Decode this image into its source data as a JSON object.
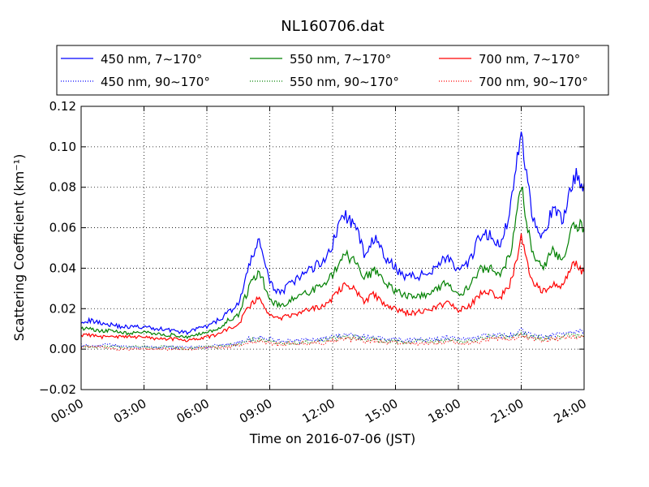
{
  "chart_data": {
    "type": "line",
    "title": "NL160706.dat",
    "xlabel": "Time on 2016-07-06 (JST)",
    "ylabel": "Scattering Coefficient (km⁻¹)",
    "xlim": [
      "00:00",
      "24:00"
    ],
    "ylim": [
      -0.02,
      0.12
    ],
    "x_ticks": [
      "00:00",
      "03:00",
      "06:00",
      "09:00",
      "12:00",
      "15:00",
      "18:00",
      "21:00",
      "24:00"
    ],
    "y_ticks": [
      "−0.02",
      "0.00",
      "0.02",
      "0.04",
      "0.06",
      "0.08",
      "0.10",
      "0.12"
    ],
    "grid": true,
    "legend_position": "top",
    "x": [
      "00:00",
      "00:30",
      "01:00",
      "01:30",
      "02:00",
      "02:30",
      "03:00",
      "03:30",
      "04:00",
      "04:30",
      "05:00",
      "05:30",
      "06:00",
      "06:30",
      "07:00",
      "07:30",
      "08:00",
      "08:30",
      "09:00",
      "09:30",
      "10:00",
      "10:30",
      "11:00",
      "11:30",
      "12:00",
      "12:30",
      "13:00",
      "13:30",
      "14:00",
      "14:30",
      "15:00",
      "15:30",
      "16:00",
      "16:30",
      "17:00",
      "17:30",
      "18:00",
      "18:30",
      "19:00",
      "19:30",
      "20:00",
      "20:30",
      "21:00",
      "21:30",
      "22:00",
      "22:30",
      "23:00",
      "23:30",
      "24:00"
    ],
    "series": [
      {
        "name": "450 nm, 7∼170°",
        "color": "#0000ff",
        "style": "solid",
        "values": [
          0.014,
          0.014,
          0.013,
          0.012,
          0.011,
          0.011,
          0.011,
          0.01,
          0.01,
          0.009,
          0.008,
          0.01,
          0.011,
          0.014,
          0.018,
          0.022,
          0.04,
          0.055,
          0.032,
          0.028,
          0.032,
          0.036,
          0.04,
          0.043,
          0.052,
          0.067,
          0.062,
          0.048,
          0.055,
          0.045,
          0.04,
          0.036,
          0.036,
          0.037,
          0.042,
          0.046,
          0.038,
          0.042,
          0.055,
          0.057,
          0.05,
          0.07,
          0.108,
          0.068,
          0.056,
          0.068,
          0.064,
          0.086,
          0.082
        ]
      },
      {
        "name": "450 nm, 90∼170°",
        "color": "#0000ff",
        "style": "dotted",
        "values": [
          0.002,
          0.002,
          0.002,
          0.002,
          0.001,
          0.001,
          0.001,
          0.001,
          0.001,
          0.001,
          0.001,
          0.001,
          0.001,
          0.002,
          0.002,
          0.003,
          0.005,
          0.006,
          0.005,
          0.004,
          0.004,
          0.004,
          0.005,
          0.005,
          0.006,
          0.007,
          0.007,
          0.006,
          0.006,
          0.005,
          0.005,
          0.004,
          0.005,
          0.005,
          0.005,
          0.006,
          0.005,
          0.005,
          0.006,
          0.007,
          0.007,
          0.007,
          0.009,
          0.007,
          0.006,
          0.007,
          0.007,
          0.008,
          0.009
        ]
      },
      {
        "name": "550 nm, 7∼170°",
        "color": "#008000",
        "style": "solid",
        "values": [
          0.01,
          0.01,
          0.009,
          0.009,
          0.008,
          0.008,
          0.008,
          0.008,
          0.007,
          0.007,
          0.006,
          0.007,
          0.008,
          0.01,
          0.014,
          0.017,
          0.03,
          0.039,
          0.024,
          0.021,
          0.024,
          0.026,
          0.029,
          0.031,
          0.037,
          0.047,
          0.044,
          0.035,
          0.039,
          0.032,
          0.029,
          0.026,
          0.026,
          0.027,
          0.03,
          0.033,
          0.027,
          0.03,
          0.039,
          0.04,
          0.036,
          0.049,
          0.08,
          0.049,
          0.04,
          0.048,
          0.045,
          0.062,
          0.06
        ]
      },
      {
        "name": "550 nm, 90∼170°",
        "color": "#008000",
        "style": "dotted",
        "values": [
          0.001,
          0.001,
          0.001,
          0.001,
          0.001,
          0.001,
          0.001,
          0.001,
          0.001,
          0.001,
          0.0,
          0.001,
          0.001,
          0.001,
          0.002,
          0.002,
          0.004,
          0.005,
          0.004,
          0.003,
          0.003,
          0.003,
          0.004,
          0.004,
          0.005,
          0.006,
          0.006,
          0.005,
          0.005,
          0.004,
          0.004,
          0.003,
          0.004,
          0.004,
          0.004,
          0.005,
          0.004,
          0.004,
          0.005,
          0.006,
          0.006,
          0.006,
          0.008,
          0.006,
          0.005,
          0.006,
          0.006,
          0.007,
          0.007
        ]
      },
      {
        "name": "700 nm, 7∼170°",
        "color": "#ff0000",
        "style": "solid",
        "values": [
          0.007,
          0.007,
          0.006,
          0.006,
          0.006,
          0.006,
          0.006,
          0.005,
          0.005,
          0.005,
          0.004,
          0.005,
          0.006,
          0.007,
          0.01,
          0.012,
          0.021,
          0.026,
          0.017,
          0.015,
          0.017,
          0.018,
          0.02,
          0.021,
          0.025,
          0.031,
          0.03,
          0.024,
          0.027,
          0.022,
          0.02,
          0.018,
          0.018,
          0.019,
          0.021,
          0.023,
          0.019,
          0.021,
          0.027,
          0.028,
          0.025,
          0.033,
          0.055,
          0.034,
          0.028,
          0.033,
          0.031,
          0.043,
          0.038
        ]
      },
      {
        "name": "700 nm, 90∼170°",
        "color": "#ff0000",
        "style": "dotted",
        "values": [
          0.001,
          0.001,
          0.001,
          0.0,
          0.0,
          0.0,
          0.0,
          0.0,
          0.0,
          0.0,
          0.0,
          0.0,
          0.001,
          0.001,
          0.001,
          0.002,
          0.003,
          0.004,
          0.003,
          0.002,
          0.003,
          0.003,
          0.003,
          0.003,
          0.004,
          0.005,
          0.005,
          0.004,
          0.004,
          0.003,
          0.003,
          0.003,
          0.003,
          0.003,
          0.003,
          0.004,
          0.003,
          0.003,
          0.004,
          0.005,
          0.005,
          0.005,
          0.007,
          0.005,
          0.004,
          0.005,
          0.005,
          0.006,
          0.006
        ]
      }
    ]
  }
}
